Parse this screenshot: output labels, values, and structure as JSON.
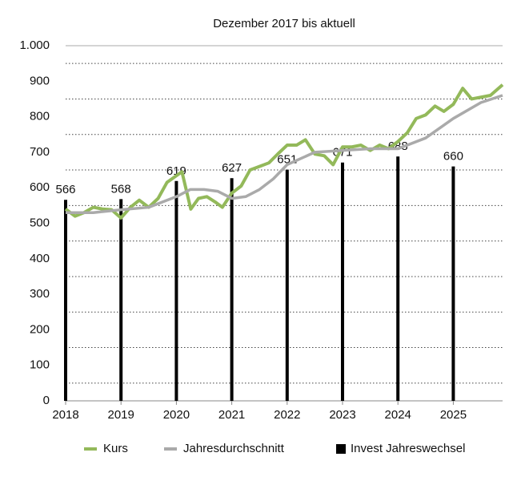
{
  "chart_data": {
    "type": "line",
    "title": "Dezember 2017 bis aktuell",
    "xlim": [
      2018,
      2025.89
    ],
    "xticks": [
      2018,
      2019,
      2020,
      2021,
      2022,
      2023,
      2024,
      2025
    ],
    "ylim": [
      0,
      1000
    ],
    "yticks": [
      0,
      100,
      200,
      300,
      400,
      500,
      600,
      700,
      800,
      900,
      {
        "value": 1000,
        "label": "1.000"
      }
    ],
    "grid_ticks": [
      50,
      150,
      250,
      350,
      450,
      550,
      650,
      750,
      850,
      950
    ],
    "series": [
      {
        "name": "Kurs",
        "type": "line",
        "color": "#93b95a",
        "x": [
          2018,
          2018.17,
          2018.33,
          2018.5,
          2018.67,
          2018.83,
          2019,
          2019.17,
          2019.33,
          2019.5,
          2019.67,
          2019.83,
          2020.1,
          2020.26,
          2020.4,
          2020.55,
          2020.7,
          2020.83,
          2021,
          2021.17,
          2021.33,
          2021.5,
          2021.67,
          2021.83,
          2022,
          2022.17,
          2022.33,
          2022.5,
          2022.67,
          2022.83,
          2023,
          2023.17,
          2023.33,
          2023.5,
          2023.67,
          2023.83,
          2024,
          2024.17,
          2024.33,
          2024.5,
          2024.67,
          2024.83,
          2025,
          2025.17,
          2025.33,
          2025.5,
          2025.67,
          2025.89
        ],
        "values": [
          540,
          520,
          530,
          545,
          540,
          538,
          515,
          545,
          565,
          545,
          570,
          615,
          645,
          540,
          570,
          575,
          560,
          545,
          585,
          605,
          650,
          660,
          670,
          695,
          720,
          720,
          735,
          695,
          690,
          665,
          715,
          715,
          720,
          705,
          720,
          710,
          730,
          755,
          795,
          805,
          830,
          815,
          835,
          880,
          850,
          855,
          860,
          890
        ]
      },
      {
        "name": "Jahresdurchschnitt",
        "type": "line",
        "color": "#aaaaaa",
        "x": [
          2018,
          2018.5,
          2019,
          2019.5,
          2020,
          2020.25,
          2020.5,
          2020.75,
          2021,
          2021.25,
          2021.5,
          2021.75,
          2022,
          2022.5,
          2023,
          2023.5,
          2024,
          2024.5,
          2025,
          2025.5,
          2025.89
        ],
        "values": [
          530,
          530,
          538,
          545,
          575,
          595,
          595,
          590,
          570,
          575,
          595,
          625,
          665,
          700,
          705,
          710,
          710,
          740,
          795,
          840,
          860
        ]
      },
      {
        "name": "Invest Jahreswechsel",
        "type": "bar",
        "color": "#000000",
        "x": [
          2018,
          2019,
          2020,
          2021,
          2022,
          2023,
          2024,
          2025
        ],
        "values": [
          566,
          568,
          619,
          627,
          651,
          671,
          688,
          660
        ]
      }
    ]
  }
}
